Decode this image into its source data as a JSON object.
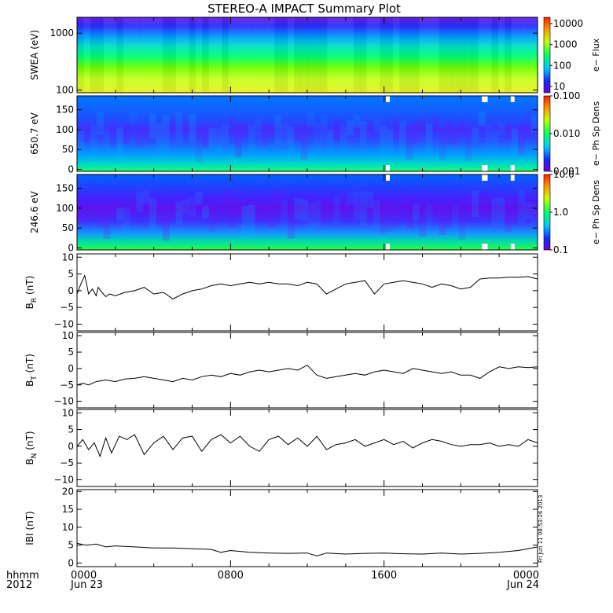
{
  "title": "STEREO-A IMPACT Summary Plot",
  "time_axis": {
    "label_line1": "hhmm",
    "label_line2": "2012",
    "ticks": [
      {
        "hour": 0,
        "line1": "0000",
        "line2": "Jun 23"
      },
      {
        "hour": 8,
        "line1": "0800",
        "line2": ""
      },
      {
        "hour": 16,
        "line1": "1600",
        "line2": ""
      },
      {
        "hour": 24,
        "line1": "0000",
        "line2": "Jun 24"
      }
    ]
  },
  "stamp_text": "Fri Jun 11 08:53:26 2013",
  "chart_data": [
    {
      "type": "heatmap",
      "panel": "swea",
      "ylabel": "SWEA (eV)",
      "scale": "log",
      "ylim": [
        90,
        1900
      ],
      "yticks": [
        {
          "v": 100,
          "label": "100"
        },
        {
          "v": 1000,
          "label": "1000"
        }
      ],
      "colorbar": {
        "label": "e− Flux",
        "scale": "log",
        "range": [
          5,
          20000
        ],
        "ticks": [
          {
            "v": 10,
            "label": "10"
          },
          {
            "v": 100,
            "label": "100"
          },
          {
            "v": 1000,
            "label": "1000"
          },
          {
            "v": 10000,
            "label": "10000"
          }
        ]
      }
    },
    {
      "type": "heatmap",
      "panel": "pad650",
      "ylabel": "650.7 eV",
      "scale": "linear",
      "ylim": [
        -5,
        185
      ],
      "yticks": [
        {
          "v": 0,
          "label": "0"
        },
        {
          "v": 50,
          "label": "50"
        },
        {
          "v": 100,
          "label": "100"
        },
        {
          "v": 150,
          "label": "150"
        }
      ],
      "colorbar": {
        "label": "e− Ph Sp Dens",
        "scale": "log",
        "range": [
          0.001,
          0.1
        ],
        "ticks": [
          {
            "v": 0.001,
            "label": "0.001"
          },
          {
            "v": 0.01,
            "label": "0.010"
          },
          {
            "v": 0.1,
            "label": "0.100"
          }
        ]
      }
    },
    {
      "type": "heatmap",
      "panel": "pad246",
      "ylabel": "246.6 eV",
      "scale": "linear",
      "ylim": [
        -5,
        185
      ],
      "yticks": [
        {
          "v": 0,
          "label": "0"
        },
        {
          "v": 50,
          "label": "50"
        },
        {
          "v": 100,
          "label": "100"
        },
        {
          "v": 150,
          "label": "150"
        }
      ],
      "colorbar": {
        "label": "e− Ph Sp Dens",
        "scale": "log",
        "range": [
          0.1,
          10
        ],
        "ticks": [
          {
            "v": 0.1,
            "label": "0.1"
          },
          {
            "v": 1,
            "label": "1.0"
          },
          {
            "v": 10,
            "label": "10.0"
          }
        ]
      }
    },
    {
      "type": "line",
      "panel": "br",
      "ylabel_main": "B",
      "ylabel_sub": "R",
      "ylabel_unit": " (nT)",
      "ylim": [
        -12,
        11
      ],
      "yticks": [
        {
          "v": -10,
          "label": "−10"
        },
        {
          "v": -5,
          "label": "−5"
        },
        {
          "v": 0,
          "label": "0"
        },
        {
          "v": 5,
          "label": "5"
        },
        {
          "v": 10,
          "label": "10"
        }
      ],
      "x": [
        0,
        0.2,
        0.4,
        0.5,
        0.6,
        0.8,
        1.0,
        1.1,
        1.3,
        1.5,
        1.7,
        2,
        2.5,
        3,
        3.5,
        4,
        4.5,
        5,
        5.5,
        6,
        6.5,
        7,
        7.5,
        8,
        8.5,
        9,
        9.5,
        10,
        10.5,
        11,
        11.5,
        12,
        12.5,
        13,
        13.5,
        14,
        14.5,
        15,
        15.5,
        16,
        16.5,
        17,
        17.5,
        18,
        18.5,
        19,
        19.5,
        20,
        20.5,
        21,
        21.5,
        22,
        22.5,
        23,
        23.5,
        24
      ],
      "y": [
        -1,
        2,
        4.5,
        2,
        -1,
        0.5,
        -1.5,
        1,
        -0.5,
        -1.8,
        -1,
        -1.5,
        -0.5,
        0,
        1,
        -1,
        -0.5,
        -2.5,
        -1,
        0,
        0.5,
        1.5,
        2,
        1.5,
        2,
        2.5,
        2,
        2.5,
        2,
        2,
        1.5,
        2.5,
        2,
        -1,
        0.5,
        2,
        2.5,
        3,
        -1,
        2,
        2.5,
        3,
        2.5,
        2,
        1,
        2,
        1.5,
        0.5,
        1,
        3.5,
        3.8,
        3.8,
        4,
        4,
        4.2,
        3.5
      ]
    },
    {
      "type": "line",
      "panel": "bt",
      "ylabel_main": "B",
      "ylabel_sub": "T",
      "ylabel_unit": " (nT)",
      "ylim": [
        -12,
        11
      ],
      "yticks": [
        {
          "v": -10,
          "label": "−10"
        },
        {
          "v": -5,
          "label": "−5"
        },
        {
          "v": 0,
          "label": "0"
        },
        {
          "v": 5,
          "label": "5"
        },
        {
          "v": 10,
          "label": "10"
        }
      ],
      "x": [
        0,
        0.3,
        0.6,
        1,
        1.5,
        2,
        2.5,
        3,
        3.5,
        4,
        4.5,
        5,
        5.5,
        6,
        6.5,
        7,
        7.5,
        8,
        8.5,
        9,
        9.5,
        10,
        10.5,
        11,
        11.5,
        12,
        12.5,
        13,
        13.5,
        14,
        14.5,
        15,
        15.5,
        16,
        16.5,
        17,
        17.5,
        18,
        18.5,
        19,
        19.5,
        20,
        20.5,
        21,
        21.5,
        22,
        22.5,
        23,
        23.5,
        24
      ],
      "y": [
        -5,
        -4.5,
        -5,
        -4,
        -3.5,
        -4,
        -3.2,
        -3,
        -2.5,
        -3,
        -3.5,
        -4,
        -3,
        -3.5,
        -2.5,
        -2,
        -2.5,
        -1.5,
        -2,
        -1,
        -0.5,
        -1,
        -0.5,
        0,
        -0.5,
        1,
        -2,
        -3,
        -2.5,
        -2,
        -1.5,
        -2,
        -1,
        -0.5,
        -1,
        -1.5,
        0,
        -0.5,
        -1,
        -1.5,
        -1,
        -2,
        -2,
        -3,
        -1,
        0.5,
        0,
        0.5,
        0.3,
        0.5
      ]
    },
    {
      "type": "line",
      "panel": "bn",
      "ylabel_main": "B",
      "ylabel_sub": "N",
      "ylabel_unit": " (nT)",
      "ylim": [
        -12,
        11
      ],
      "yticks": [
        {
          "v": -10,
          "label": "−10"
        },
        {
          "v": -5,
          "label": "−5"
        },
        {
          "v": 0,
          "label": "0"
        },
        {
          "v": 5,
          "label": "5"
        },
        {
          "v": 10,
          "label": "10"
        }
      ],
      "x": [
        0,
        0.3,
        0.6,
        0.9,
        1.2,
        1.5,
        1.8,
        2.2,
        2.6,
        3,
        3.5,
        4,
        4.5,
        5,
        5.5,
        6,
        6.5,
        7,
        7.5,
        8,
        8.5,
        9,
        9.5,
        10,
        10.5,
        11,
        11.5,
        12,
        12.5,
        13,
        13.5,
        14,
        14.5,
        15,
        15.5,
        16,
        16.5,
        17,
        17.5,
        18,
        18.5,
        19,
        19.5,
        20,
        20.5,
        21,
        21.5,
        22,
        22.5,
        23,
        23.5,
        24
      ],
      "y": [
        0,
        2,
        -1,
        1,
        -3,
        2.5,
        -2,
        3,
        2,
        3.5,
        -2.5,
        1,
        3,
        -1,
        2.5,
        3,
        -1.5,
        2,
        3.5,
        1,
        3,
        0,
        -1.5,
        2,
        3,
        0.5,
        2.5,
        0,
        3,
        -1,
        0.5,
        1,
        2,
        0,
        1,
        2,
        0.5,
        1.5,
        -0.5,
        1,
        2,
        1.5,
        0.5,
        0,
        0.5,
        0.5,
        1,
        0,
        0.5,
        0,
        2,
        1
      ]
    },
    {
      "type": "line",
      "panel": "bmag",
      "ylabel_main": "IBI (nT)",
      "ylim": [
        -1,
        20.5
      ],
      "yticks": [
        {
          "v": 0,
          "label": "0"
        },
        {
          "v": 5,
          "label": "5"
        },
        {
          "v": 10,
          "label": "10"
        },
        {
          "v": 15,
          "label": "15"
        },
        {
          "v": 20,
          "label": "20"
        }
      ],
      "x": [
        0,
        0.5,
        1,
        1.5,
        2,
        3,
        4,
        5,
        6,
        7,
        7.5,
        8,
        9,
        10,
        11,
        12,
        12.5,
        13,
        14,
        15,
        16,
        17,
        18,
        19,
        20,
        21,
        22,
        23,
        24
      ],
      "y": [
        5.5,
        5,
        5.3,
        4.5,
        4.8,
        4.5,
        4.2,
        4.2,
        4,
        3.8,
        3,
        3.5,
        3,
        2.8,
        2.7,
        2.8,
        2,
        2.8,
        2.5,
        2.7,
        2.8,
        2.6,
        2.5,
        2.8,
        2.5,
        2.7,
        3,
        3.5,
        4.5
      ]
    }
  ]
}
